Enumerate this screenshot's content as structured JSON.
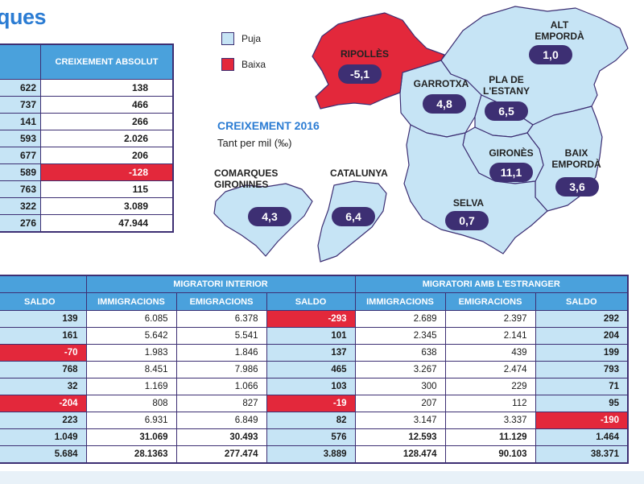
{
  "title": "ques",
  "colors": {
    "puja": "#c6e4f5",
    "baixa": "#e3283b",
    "header": "#4aa1dc",
    "pill": "#3d2f73",
    "accent": "#2b7cd3"
  },
  "top_table": {
    "header": "CREIXEMENT ABSOLUT",
    "rows": [
      {
        "left": "622",
        "value": "138",
        "neg": false
      },
      {
        "left": "737",
        "value": "466",
        "neg": false
      },
      {
        "left": "141",
        "value": "266",
        "neg": false
      },
      {
        "left": "593",
        "value": "2.026",
        "neg": false
      },
      {
        "left": "677",
        "value": "206",
        "neg": false
      },
      {
        "left": "589",
        "value": "-128",
        "neg": true
      },
      {
        "left": "763",
        "value": "115",
        "neg": false
      },
      {
        "left": "322",
        "value": "3.089",
        "neg": false
      },
      {
        "left": "276",
        "value": "47.944",
        "neg": false
      }
    ]
  },
  "map": {
    "legend": [
      {
        "label": "Puja",
        "color": "#c6e4f5"
      },
      {
        "label": "Baixa",
        "color": "#e3283b"
      }
    ],
    "heading": "CREIXEMENT 2016",
    "subheading": "Tant per mil (‰)",
    "regions": [
      {
        "name": "ALT EMPORDÀ",
        "value": "1,0"
      },
      {
        "name": "RIPOLLÈS",
        "value": "-5,1"
      },
      {
        "name": "GARROTXA",
        "value": "4,8"
      },
      {
        "name": "PLA DE L'ESTANY",
        "value": "6,5"
      },
      {
        "name": "GIRONÈS",
        "value": "11,1"
      },
      {
        "name": "BAIX EMPORDÀ",
        "value": "3,6"
      },
      {
        "name": "SELVA",
        "value": "0,7"
      }
    ],
    "comarques": {
      "name": "COMARQUES GIRONINES",
      "value": "4,3"
    },
    "catalunya": {
      "name": "CATALUNYA",
      "value": "6,4"
    }
  },
  "bottom_table": {
    "groups": [
      "MIGRATORI INTERIOR",
      "MIGRATORI AMB L'ESTRANGER"
    ],
    "subheaders": [
      "SALDO",
      "IMMIGRACIONS",
      "EMIGRACIONS",
      "SALDO",
      "IMMIGRACIONS",
      "EMIGRACIONS",
      "SALDO"
    ],
    "rows": [
      [
        "139",
        "6.085",
        "6.378",
        "-293",
        "2.689",
        "2.397",
        "292"
      ],
      [
        "161",
        "5.642",
        "5.541",
        "101",
        "2.345",
        "2.141",
        "204"
      ],
      [
        "-70",
        "1.983",
        "1.846",
        "137",
        "638",
        "439",
        "199"
      ],
      [
        "768",
        "8.451",
        "7.986",
        "465",
        "3.267",
        "2.474",
        "793"
      ],
      [
        "32",
        "1.169",
        "1.066",
        "103",
        "300",
        "229",
        "71"
      ],
      [
        "-204",
        "808",
        "827",
        "-19",
        "207",
        "112",
        "95"
      ],
      [
        "223",
        "6.931",
        "6.849",
        "82",
        "3.147",
        "3.337",
        "-190"
      ],
      [
        "1.049",
        "31.069",
        "30.493",
        "576",
        "12.593",
        "11.129",
        "1.464"
      ],
      [
        "5.684",
        "28.1363",
        "277.474",
        "3.889",
        "128.474",
        "90.103",
        "38.371"
      ]
    ]
  },
  "chart_data": {
    "type": "table",
    "title": "CREIXEMENT 2016",
    "subtitle": "Tant per mil (‰)",
    "categories": [
      "RIPOLLÈS",
      "GARROTXA",
      "PLA DE L'ESTANY",
      "ALT EMPORDÀ",
      "GIRONÈS",
      "BAIX EMPORDÀ",
      "SELVA",
      "COMARQUES GIRONINES",
      "CATALUNYA"
    ],
    "values": [
      -5.1,
      4.8,
      6.5,
      1.0,
      11.1,
      3.6,
      0.7,
      4.3,
      6.4
    ]
  }
}
